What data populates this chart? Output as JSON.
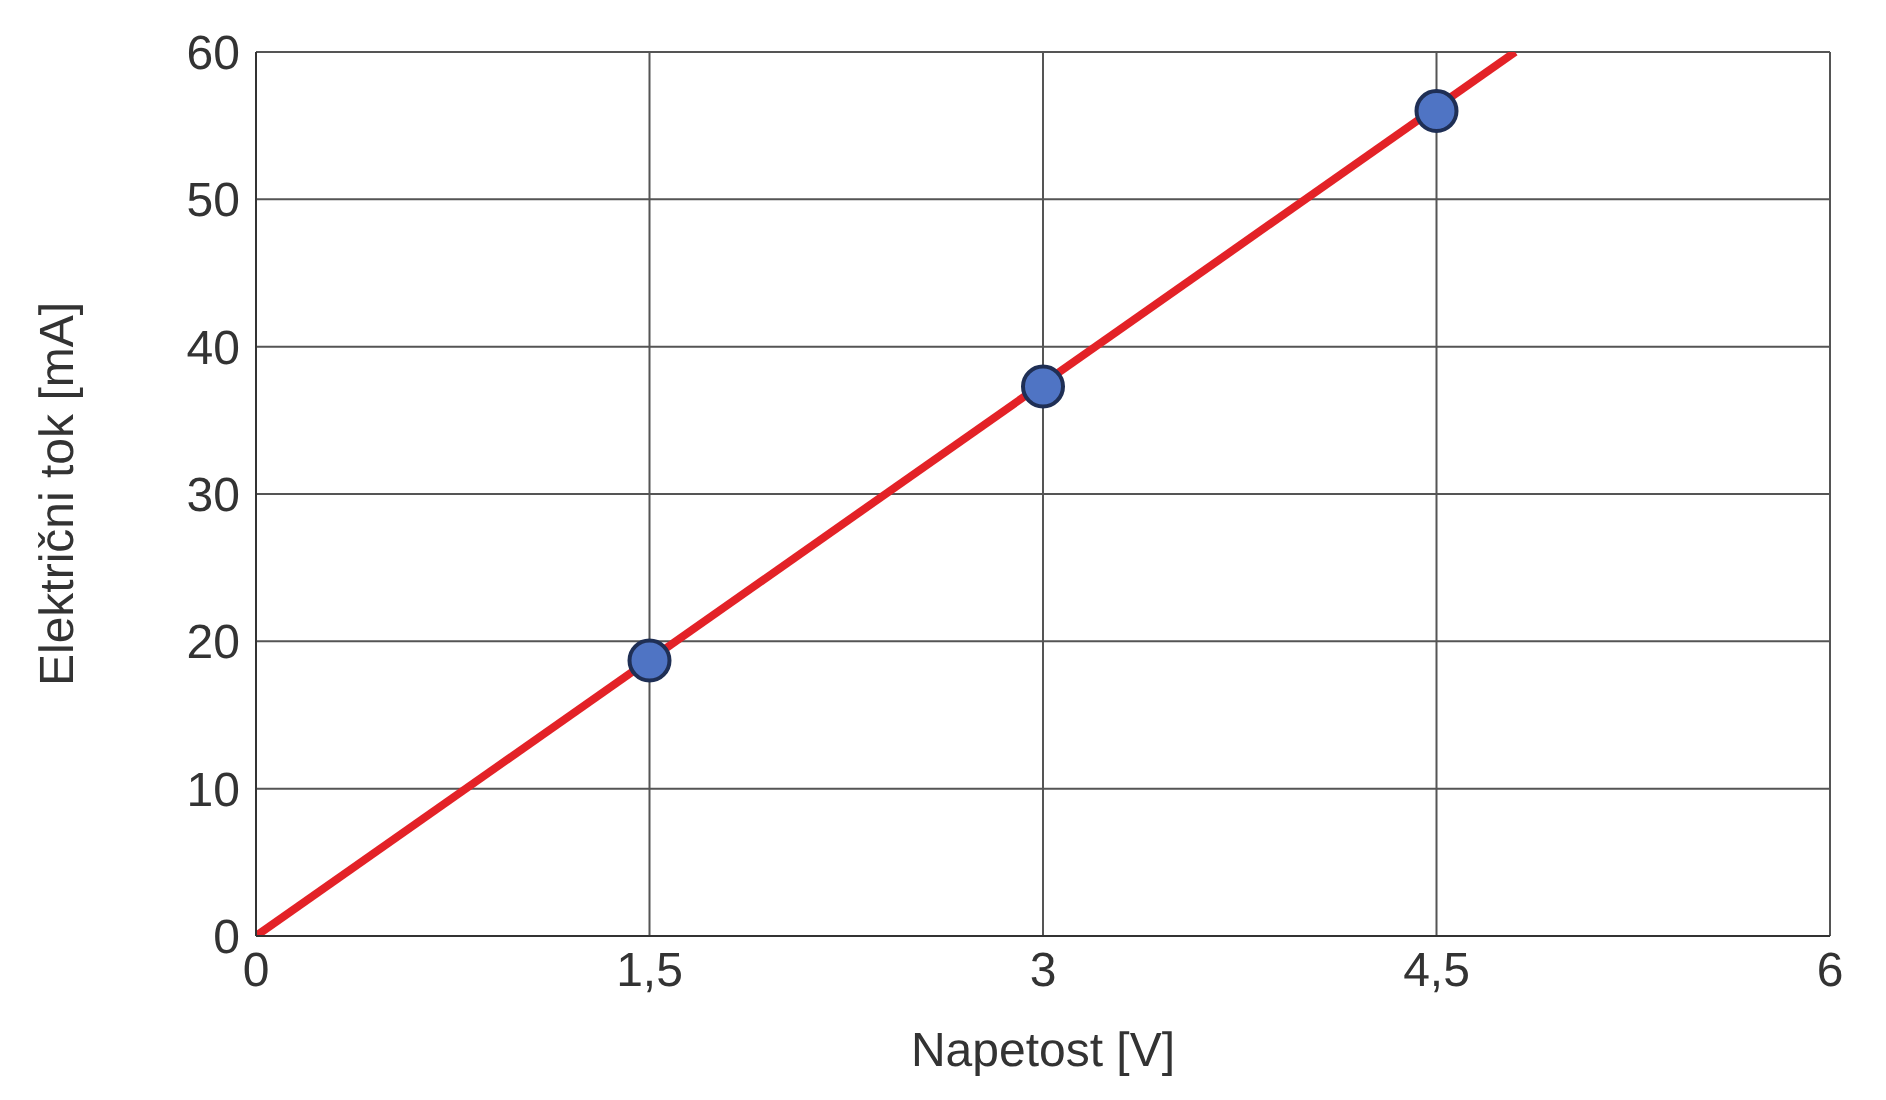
{
  "chart_data": {
    "type": "scatter",
    "xlabel": "Napetost [V]",
    "ylabel": "Električni tok [mA]",
    "xlim": [
      0,
      6
    ],
    "xticks": [
      0,
      {
        "value": 1.5,
        "label": "1,5"
      },
      3,
      {
        "value": 4.5,
        "label": "4,5"
      },
      6
    ],
    "ylim": [
      0,
      60
    ],
    "yticks": [
      0,
      10,
      20,
      30,
      40,
      50,
      60
    ],
    "grid": true,
    "legend": false,
    "series": [
      {
        "color": "#4f74c4",
        "x": [
          1.5,
          3,
          4.5
        ],
        "values": [
          18.7,
          37.3,
          56
        ],
        "marker": "circle"
      },
      {
        "type": "line",
        "color": "#e32227",
        "x": [
          0,
          4.8
        ],
        "values": [
          0,
          60
        ],
        "marker": "none",
        "line_style": "solid"
      }
    ]
  }
}
